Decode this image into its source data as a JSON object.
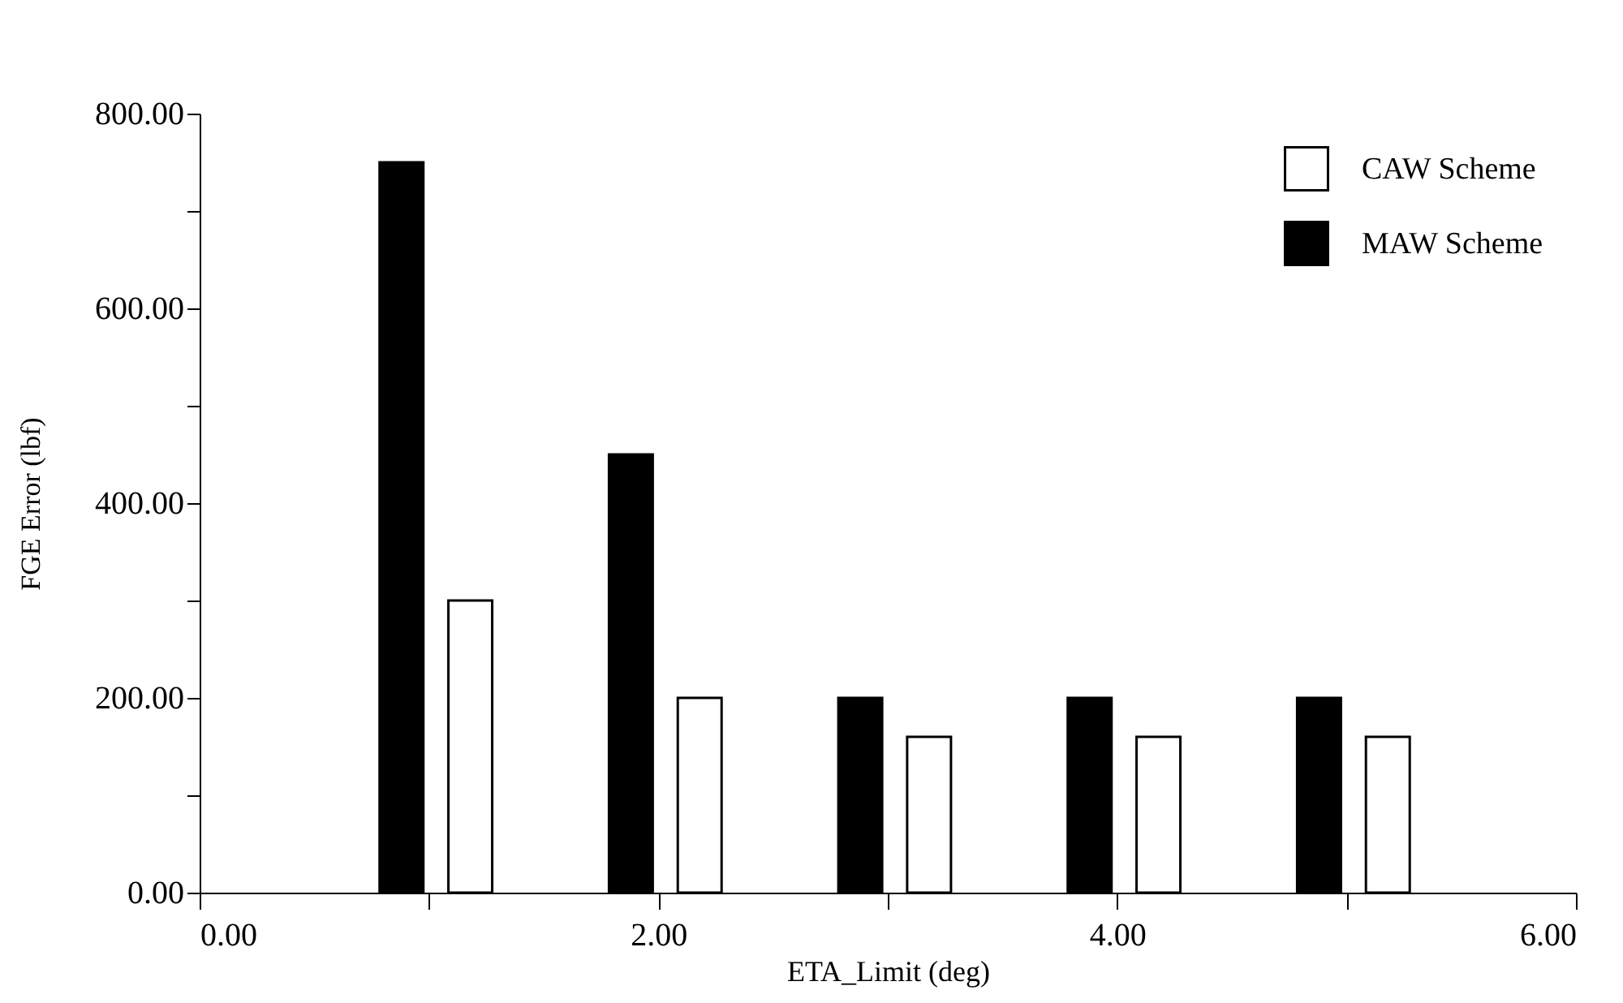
{
  "chart_data": {
    "type": "bar",
    "xlabel": "ETA_Limit (deg)",
    "ylabel": "FGE Error (lbf)",
    "series": [
      {
        "name": "CAW Scheme",
        "color": "#ffffff",
        "x": [
          1.18,
          2.18,
          3.18,
          4.18,
          5.18
        ],
        "values": [
          300,
          200,
          160,
          160,
          160
        ]
      },
      {
        "name": "MAW Scheme",
        "color": "#000000",
        "x": [
          0.88,
          1.88,
          2.88,
          3.88,
          4.88
        ],
        "values": [
          750,
          450,
          200,
          200,
          200
        ]
      }
    ],
    "xlim": [
      0,
      6
    ],
    "xticks": [
      {
        "value": 0,
        "label": "0.00"
      },
      {
        "value": 1,
        "label": null
      },
      {
        "value": 2,
        "label": "2.00"
      },
      {
        "value": 3,
        "label": null
      },
      {
        "value": 4,
        "label": "4.00"
      },
      {
        "value": 5,
        "label": null
      },
      {
        "value": 6,
        "label": "6.00"
      }
    ],
    "ylim": [
      0,
      800
    ],
    "yticks": [
      {
        "value": 0,
        "label": "0.00"
      },
      {
        "value": 100,
        "label": null
      },
      {
        "value": 200,
        "label": "200.00"
      },
      {
        "value": 300,
        "label": null
      },
      {
        "value": 400,
        "label": "400.00"
      },
      {
        "value": 500,
        "label": null
      },
      {
        "value": 600,
        "label": "600.00"
      },
      {
        "value": 700,
        "label": null
      },
      {
        "value": 800,
        "label": "800.00"
      }
    ],
    "grid": false,
    "legend": "top right"
  }
}
